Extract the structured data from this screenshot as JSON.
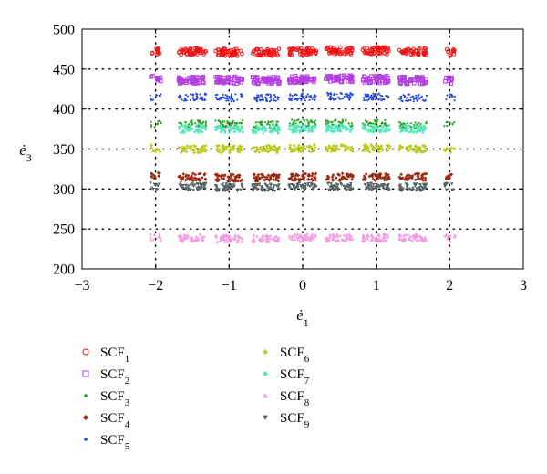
{
  "chart_data": {
    "type": "scatter",
    "title": "",
    "xlabel": "ė1",
    "ylabel": "ė3",
    "xlim": [
      -3,
      3
    ],
    "ylim": [
      200,
      500
    ],
    "xticks": [
      "−3",
      "−2",
      "−1",
      "0",
      "1",
      "2",
      "3"
    ],
    "yticks": [
      "200",
      "250",
      "300",
      "350",
      "400",
      "450",
      "500"
    ],
    "grid": "dotted at x = −2, −1, 0, 1, 2 and y = 250 to 450",
    "legend_position": "below plot, two columns",
    "x_clusters": [
      -2,
      -1.5,
      -1,
      -0.5,
      0,
      0.5,
      1,
      1.5,
      2
    ],
    "series": [
      {
        "name": "SCF1",
        "marker": "circle",
        "color": "#ee1111",
        "y": 473,
        "points": [
          [
            -2,
            473
          ],
          [
            -1.5,
            472
          ],
          [
            -1,
            471
          ],
          [
            -0.5,
            471
          ],
          [
            0,
            472
          ],
          [
            0.5,
            473
          ],
          [
            1,
            473
          ],
          [
            1.5,
            472
          ],
          [
            2,
            471
          ]
        ]
      },
      {
        "name": "SCF2",
        "marker": "square",
        "color": "#b23fe0",
        "y": 437,
        "points": [
          [
            -2,
            437
          ],
          [
            -1.5,
            436
          ],
          [
            -1,
            436
          ],
          [
            -0.5,
            436
          ],
          [
            0,
            437
          ],
          [
            0.5,
            438
          ],
          [
            1,
            437
          ],
          [
            1.5,
            436
          ],
          [
            2,
            436
          ]
        ]
      },
      {
        "name": "SCF3",
        "marker": "point",
        "color": "#22a022",
        "y": 381,
        "points": [
          [
            -2,
            381
          ],
          [
            -1.5,
            381
          ],
          [
            -1,
            381
          ],
          [
            -0.5,
            380
          ],
          [
            0,
            382
          ],
          [
            0.5,
            382
          ],
          [
            1,
            382
          ],
          [
            1.5,
            380
          ],
          [
            2,
            380
          ]
        ]
      },
      {
        "name": "SCF4",
        "marker": "diamond",
        "color": "#9a2a12",
        "y": 315,
        "points": [
          [
            -2,
            316
          ],
          [
            -1.5,
            315
          ],
          [
            -1,
            314
          ],
          [
            -0.5,
            314
          ],
          [
            0,
            315
          ],
          [
            0.5,
            315
          ],
          [
            1,
            315
          ],
          [
            1.5,
            315
          ],
          [
            2,
            315
          ]
        ]
      },
      {
        "name": "SCF5",
        "marker": "point",
        "color": "#2244dd",
        "y": 415,
        "points": [
          [
            -2,
            415
          ],
          [
            -1.5,
            415
          ],
          [
            -1,
            414
          ],
          [
            -0.5,
            414
          ],
          [
            0,
            415
          ],
          [
            0.5,
            416
          ],
          [
            1,
            415
          ],
          [
            1.5,
            414
          ],
          [
            2,
            414
          ]
        ]
      },
      {
        "name": "SCF6",
        "marker": "diamond",
        "color": "#bccc22",
        "y": 351,
        "points": [
          [
            -2,
            351
          ],
          [
            -1.5,
            350
          ],
          [
            -1,
            350
          ],
          [
            -0.5,
            350
          ],
          [
            0,
            351
          ],
          [
            0.5,
            351
          ],
          [
            1,
            351
          ],
          [
            1.5,
            350
          ],
          [
            2,
            350
          ]
        ]
      },
      {
        "name": "SCF7",
        "marker": "diamond",
        "color": "#55e8bb",
        "y": 375,
        "points": [
          [
            -1.5,
            375
          ],
          [
            -1,
            375
          ],
          [
            -0.5,
            374
          ],
          [
            0,
            375
          ],
          [
            0.5,
            376
          ],
          [
            1,
            375
          ],
          [
            1.5,
            375
          ]
        ]
      },
      {
        "name": "SCF8",
        "marker": "triangle-up",
        "color": "#f49ae0",
        "y": 239,
        "points": [
          [
            -2,
            239
          ],
          [
            -1.5,
            239
          ],
          [
            -1,
            238
          ],
          [
            -0.5,
            238
          ],
          [
            0,
            239
          ],
          [
            0.5,
            239
          ],
          [
            1,
            239
          ],
          [
            1.5,
            239
          ],
          [
            2,
            239
          ]
        ]
      },
      {
        "name": "SCF9",
        "marker": "triangle-down",
        "color": "#556566",
        "y": 303,
        "points": [
          [
            -2,
            303
          ],
          [
            -1.5,
            303
          ],
          [
            -1,
            302
          ],
          [
            -0.5,
            302
          ],
          [
            0,
            303
          ],
          [
            0.5,
            303
          ],
          [
            1,
            303
          ],
          [
            1.5,
            302
          ],
          [
            2,
            303
          ]
        ]
      }
    ]
  }
}
